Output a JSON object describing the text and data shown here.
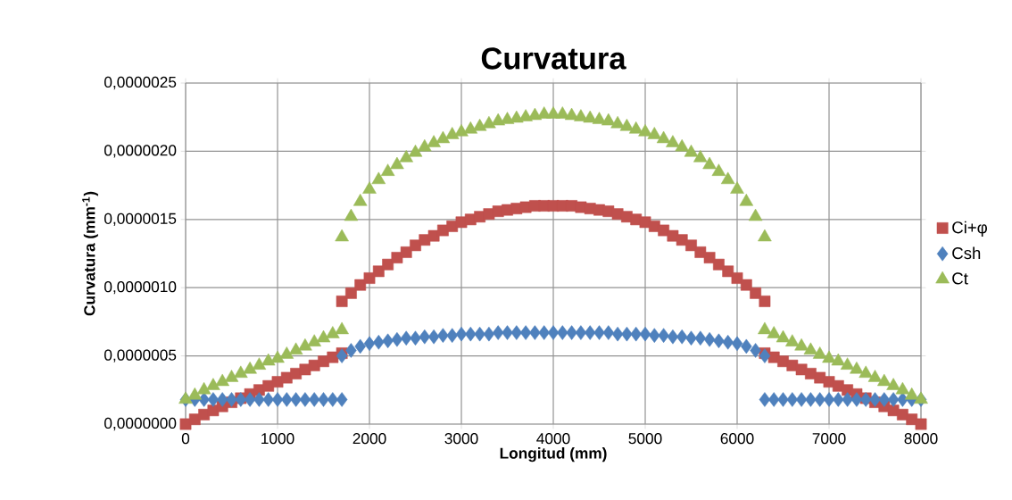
{
  "chart_data": {
    "type": "scatter",
    "title": "Curvatura",
    "xlabel": "Longitud (mm)",
    "ylabel": "Curvatura (mm$^{-1}$)",
    "x": [
      0,
      100,
      200,
      300,
      400,
      500,
      600,
      700,
      800,
      900,
      1000,
      1100,
      1200,
      1300,
      1400,
      1500,
      1600,
      1700,
      1700,
      1800,
      1900,
      2000,
      2100,
      2200,
      2300,
      2400,
      2500,
      2600,
      2700,
      2800,
      2900,
      3000,
      3100,
      3200,
      3300,
      3400,
      3500,
      3600,
      3700,
      3800,
      3900,
      4000,
      4100,
      4200,
      4300,
      4400,
      4500,
      4600,
      4700,
      4800,
      4900,
      5000,
      5100,
      5200,
      5300,
      5400,
      5500,
      5600,
      5700,
      5800,
      5900,
      6000,
      6100,
      6200,
      6300,
      6300,
      6400,
      6500,
      6600,
      6700,
      6800,
      6900,
      7000,
      7100,
      7200,
      7300,
      7400,
      7500,
      7600,
      7700,
      7800,
      7900,
      8000
    ],
    "series": [
      {
        "name": "Ci+φ",
        "color": "#c0504d",
        "marker": "square",
        "values": [
          0,
          3.5e-08,
          7e-08,
          1e-07,
          1.3e-07,
          1.6e-07,
          1.9e-07,
          2.2e-07,
          2.5e-07,
          2.8e-07,
          3.1e-07,
          3.4e-07,
          3.7e-07,
          4e-07,
          4.3e-07,
          4.6e-07,
          4.9e-07,
          5.2e-07,
          9e-07,
          9.6e-07,
          1.02e-06,
          1.07e-06,
          1.12e-06,
          1.17e-06,
          1.22e-06,
          1.26e-06,
          1.31e-06,
          1.35e-06,
          1.38e-06,
          1.42e-06,
          1.45e-06,
          1.48e-06,
          1.5e-06,
          1.52e-06,
          1.54e-06,
          1.56e-06,
          1.57e-06,
          1.58e-06,
          1.59e-06,
          1.6e-06,
          1.6e-06,
          1.6e-06,
          1.6e-06,
          1.6e-06,
          1.59e-06,
          1.58e-06,
          1.57e-06,
          1.56e-06,
          1.54e-06,
          1.52e-06,
          1.5e-06,
          1.48e-06,
          1.45e-06,
          1.42e-06,
          1.38e-06,
          1.35e-06,
          1.31e-06,
          1.26e-06,
          1.22e-06,
          1.17e-06,
          1.12e-06,
          1.07e-06,
          1.02e-06,
          9.6e-07,
          9e-07,
          5.2e-07,
          4.9e-07,
          4.6e-07,
          4.3e-07,
          4e-07,
          3.7e-07,
          3.4e-07,
          3.1e-07,
          2.8e-07,
          2.5e-07,
          2.2e-07,
          1.9e-07,
          1.6e-07,
          1.3e-07,
          1e-07,
          7e-08,
          3.5e-08,
          0
        ]
      },
      {
        "name": "Csh",
        "color": "#4f81bd",
        "marker": "diamond",
        "values": [
          1.8e-07,
          1.8e-07,
          1.8e-07,
          1.8e-07,
          1.8e-07,
          1.8e-07,
          1.8e-07,
          1.8e-07,
          1.8e-07,
          1.8e-07,
          1.8e-07,
          1.8e-07,
          1.8e-07,
          1.8e-07,
          1.8e-07,
          1.8e-07,
          1.8e-07,
          1.8e-07,
          5e-07,
          5.4e-07,
          5.7e-07,
          5.9e-07,
          6e-07,
          6.1e-07,
          6.2e-07,
          6.3e-07,
          6.3e-07,
          6.4e-07,
          6.4e-07,
          6.5e-07,
          6.5e-07,
          6.6e-07,
          6.6e-07,
          6.6e-07,
          6.6e-07,
          6.7e-07,
          6.7e-07,
          6.7e-07,
          6.7e-07,
          6.7e-07,
          6.7e-07,
          6.7e-07,
          6.7e-07,
          6.7e-07,
          6.7e-07,
          6.7e-07,
          6.7e-07,
          6.7e-07,
          6.6e-07,
          6.6e-07,
          6.6e-07,
          6.6e-07,
          6.5e-07,
          6.5e-07,
          6.4e-07,
          6.4e-07,
          6.3e-07,
          6.3e-07,
          6.2e-07,
          6.1e-07,
          6e-07,
          5.9e-07,
          5.7e-07,
          5.4e-07,
          5e-07,
          1.8e-07,
          1.8e-07,
          1.8e-07,
          1.8e-07,
          1.8e-07,
          1.8e-07,
          1.8e-07,
          1.8e-07,
          1.8e-07,
          1.8e-07,
          1.8e-07,
          1.8e-07,
          1.8e-07,
          1.8e-07,
          1.8e-07,
          1.8e-07,
          1.8e-07,
          1.8e-07
        ]
      },
      {
        "name": "Ct",
        "color": "#9bbb59",
        "marker": "triangle",
        "values": [
          1.8e-07,
          2.1e-07,
          2.5e-07,
          2.8e-07,
          3.1e-07,
          3.4e-07,
          3.7e-07,
          4e-07,
          4.3e-07,
          4.6e-07,
          4.8e-07,
          5.1e-07,
          5.4e-07,
          5.7e-07,
          6e-07,
          6.3e-07,
          6.6e-07,
          6.9e-07,
          1.37e-06,
          1.52e-06,
          1.63e-06,
          1.72e-06,
          1.79e-06,
          1.85e-06,
          1.9e-06,
          1.95e-06,
          1.99e-06,
          2.03e-06,
          2.06e-06,
          2.09e-06,
          2.12e-06,
          2.14e-06,
          2.16e-06,
          2.18e-06,
          2.2e-06,
          2.22e-06,
          2.23e-06,
          2.24e-06,
          2.25e-06,
          2.26e-06,
          2.27e-06,
          2.27e-06,
          2.27e-06,
          2.26e-06,
          2.25e-06,
          2.24e-06,
          2.23e-06,
          2.22e-06,
          2.2e-06,
          2.18e-06,
          2.16e-06,
          2.14e-06,
          2.12e-06,
          2.09e-06,
          2.06e-06,
          2.03e-06,
          1.99e-06,
          1.95e-06,
          1.9e-06,
          1.85e-06,
          1.79e-06,
          1.72e-06,
          1.63e-06,
          1.52e-06,
          1.37e-06,
          6.9e-07,
          6.6e-07,
          6.3e-07,
          6e-07,
          5.7e-07,
          5.4e-07,
          5.1e-07,
          4.8e-07,
          4.6e-07,
          4.3e-07,
          4e-07,
          3.7e-07,
          3.4e-07,
          3.1e-07,
          2.8e-07,
          2.5e-07,
          2.1e-07,
          1.8e-07
        ]
      }
    ],
    "xlim": [
      0,
      8000
    ],
    "xticks": [
      0,
      1000,
      2000,
      3000,
      4000,
      5000,
      6000,
      7000,
      8000
    ],
    "ylim": [
      0,
      2.5e-06
    ],
    "yticks": [
      {
        "value": 0,
        "label": "0,0000000"
      },
      {
        "value": 5e-07,
        "label": "0,0000005"
      },
      {
        "value": 1e-06,
        "label": "0,0000010"
      },
      {
        "value": 1.5e-06,
        "label": "0,0000015"
      },
      {
        "value": 2e-06,
        "label": "0,0000020"
      },
      {
        "value": 2.5e-06,
        "label": "0,0000025"
      }
    ],
    "grid": true,
    "legend": "right"
  }
}
